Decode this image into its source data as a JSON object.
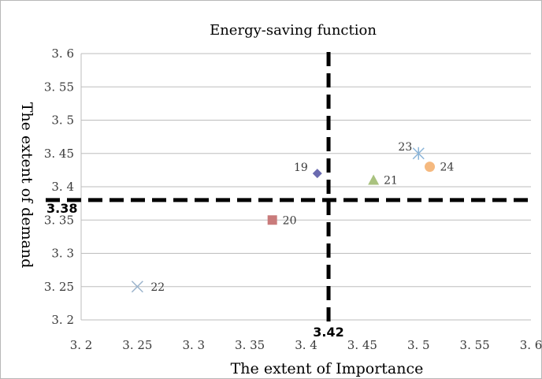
{
  "chart_data": {
    "type": "scatter",
    "title": "Energy-saving function",
    "xlabel": "The extent of Importance",
    "ylabel": "The extent of demand",
    "xlim": [
      3.2,
      3.6
    ],
    "ylim": [
      3.2,
      3.6
    ],
    "x_ticks": [
      "3. 2",
      "3. 25",
      "3. 3",
      "3. 35",
      "3. 4",
      "3. 45",
      "3. 5",
      "3. 55",
      "3. 6"
    ],
    "y_ticks": [
      "3. 2",
      "3. 25",
      "3. 3",
      "3. 35",
      "3. 4",
      "3. 45",
      "3. 5",
      "3. 55",
      "3. 6"
    ],
    "grid": "horizontal",
    "points": [
      {
        "label": "19",
        "x": 3.41,
        "y": 3.42,
        "marker": "diamond",
        "color": "#6b6bb0"
      },
      {
        "label": "20",
        "x": 3.37,
        "y": 3.35,
        "marker": "square",
        "color": "#c97b7b"
      },
      {
        "label": "21",
        "x": 3.46,
        "y": 3.41,
        "marker": "triangle",
        "color": "#a9c27f"
      },
      {
        "label": "22",
        "x": 3.25,
        "y": 3.25,
        "marker": "x",
        "color": "#9bb3cc"
      },
      {
        "label": "23",
        "x": 3.5,
        "y": 3.45,
        "marker": "star",
        "color": "#8ab4d8"
      },
      {
        "label": "24",
        "x": 3.51,
        "y": 3.43,
        "marker": "circle",
        "color": "#f5b97f"
      }
    ],
    "thresholds": {
      "x": {
        "value": 3.42,
        "label": "3.42"
      },
      "y": {
        "value": 3.38,
        "label": "3.38"
      }
    }
  }
}
